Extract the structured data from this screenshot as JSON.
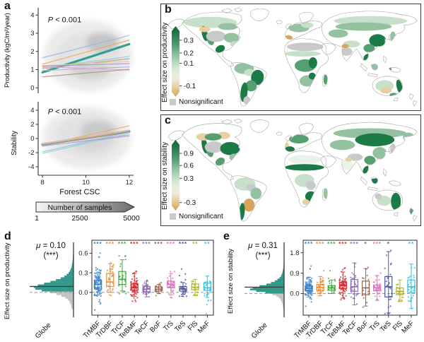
{
  "panels": {
    "a": {
      "label": "a",
      "p_value": "P < 0.001",
      "ylabel_top": "Productivity (kgC/m²/year)",
      "ylabel_bottom": "Stability",
      "xlabel": "Forest CSC",
      "samples_label": "Number of samples",
      "samples_ticks": [
        "1",
        "2500",
        "5000"
      ]
    },
    "b": {
      "label": "b",
      "legend_title": "Effect size on productivity",
      "nonsignificant": "Nonsignificant"
    },
    "c": {
      "label": "c",
      "legend_title": "Effect size on stability",
      "nonsignificant": "Nonsignificant"
    },
    "d": {
      "label": "d",
      "mu_sym": "μ",
      "mu_rest": " = 0.10",
      "sig": "(***)",
      "ylabel": "Effect size on productivity",
      "globe": "Globe"
    },
    "e": {
      "label": "e",
      "mu_sym": "μ",
      "mu_rest": " = 0.31",
      "sig": "(***)",
      "ylabel": "Effect size on stability",
      "globe": "Globe"
    }
  },
  "map_palette": {
    "outline": "#b4b4b4",
    "ns": "#c9c9c9",
    "g0": "#eaf2e8",
    "g1": "#c8dfc9",
    "g2": "#94c2a1",
    "g3": "#569f70",
    "g4": "#1b7a45",
    "tan1": "#e7cfa0",
    "tan2": "#d7a65b"
  },
  "chart_data": [
    {
      "id": "a_top",
      "type": "line",
      "title": "",
      "ylabel": "Productivity (kgC/m²/year)",
      "xlabel": "",
      "annotation": "P < 0.001",
      "xlim": [
        7.8,
        12.2
      ],
      "ylim": [
        -0.3,
        4.4
      ],
      "yticks": [
        0,
        1,
        2,
        3,
        4
      ],
      "xticks": [
        8,
        10,
        12
      ],
      "show_xticks": false,
      "series": [
        {
          "name": "Globe",
          "color": "#289c8e",
          "lw": 3.2,
          "x": [
            8,
            12
          ],
          "y": [
            0.85,
            2.4
          ]
        },
        {
          "name": "TrMBF",
          "color": "#92b9e0",
          "lw": 1.1,
          "x": [
            8,
            12
          ],
          "y": [
            1.65,
            2.88
          ]
        },
        {
          "name": "TrDBF",
          "color": "#edaa55",
          "lw": 1.1,
          "x": [
            8,
            12
          ],
          "y": [
            1.3,
            2.62
          ]
        },
        {
          "name": "MeF",
          "color": "#82d3da",
          "lw": 1.1,
          "x": [
            8,
            12
          ],
          "y": [
            1.1,
            1.72
          ]
        },
        {
          "name": "TeBMF",
          "color": "#dd8a85",
          "lw": 1.1,
          "x": [
            8,
            12
          ],
          "y": [
            1.05,
            1.6
          ]
        },
        {
          "name": "FlS",
          "color": "#d3d490",
          "lw": 1.1,
          "x": [
            8,
            12
          ],
          "y": [
            1.22,
            1.45
          ]
        },
        {
          "name": "TeCF",
          "color": "#a795cd",
          "lw": 1.1,
          "x": [
            8,
            12
          ],
          "y": [
            1.2,
            1.33
          ]
        },
        {
          "name": "TeS",
          "color": "#b7aeda",
          "lw": 1.1,
          "x": [
            8,
            12
          ],
          "y": [
            0.95,
            1.15
          ]
        },
        {
          "name": "TrS",
          "color": "#dfa9cf",
          "lw": 1.1,
          "x": [
            8,
            12
          ],
          "y": [
            1.16,
            0.98
          ]
        },
        {
          "name": "BoF",
          "color": "#b68f80",
          "lw": 1.1,
          "x": [
            8,
            12
          ],
          "y": [
            0.6,
            1.02
          ]
        }
      ]
    },
    {
      "id": "a_bottom",
      "type": "line",
      "title": "",
      "ylabel": "Stability",
      "xlabel": "Forest CSC",
      "annotation": "P < 0.001",
      "xlim": [
        7.8,
        12.2
      ],
      "ylim": [
        -5.2,
        5.2
      ],
      "yticks": [
        -4,
        -2,
        0,
        2,
        4
      ],
      "xticks": [
        8,
        10,
        12
      ],
      "show_xticks": true,
      "series": [
        {
          "name": "Globe",
          "color": "#289c8e",
          "lw": 3.2,
          "x": [
            8,
            12
          ],
          "y": [
            -0.85,
            1.0
          ]
        },
        {
          "name": "TrDBF",
          "color": "#edaa55",
          "lw": 1.1,
          "x": [
            8,
            12
          ],
          "y": [
            -0.95,
            1.8
          ]
        },
        {
          "name": "TrMBF",
          "color": "#92b9e0",
          "lw": 1.1,
          "x": [
            8,
            12
          ],
          "y": [
            -1.9,
            0.9
          ]
        },
        {
          "name": "MeF",
          "color": "#82d3da",
          "lw": 1.1,
          "x": [
            8,
            12
          ],
          "y": [
            -2.1,
            0.7
          ]
        },
        {
          "name": "TrS",
          "color": "#dfa9cf",
          "lw": 1.1,
          "x": [
            8,
            12
          ],
          "y": [
            -0.7,
            1.2
          ]
        },
        {
          "name": "TeBMF",
          "color": "#dd8a85",
          "lw": 1.1,
          "x": [
            8,
            12
          ],
          "y": [
            -0.85,
            1.05
          ]
        },
        {
          "name": "FlS",
          "color": "#d3d490",
          "lw": 1.1,
          "x": [
            8,
            12
          ],
          "y": [
            -0.8,
            1.1
          ]
        },
        {
          "name": "TeCF",
          "color": "#a795cd",
          "lw": 1.1,
          "x": [
            8,
            12
          ],
          "y": [
            -1.05,
            0.35
          ]
        },
        {
          "name": "TeS",
          "color": "#b7aeda",
          "lw": 1.1,
          "x": [
            8,
            12
          ],
          "y": [
            -1.1,
            0.5
          ]
        },
        {
          "name": "BoF",
          "color": "#b68f80",
          "lw": 1.1,
          "x": [
            8,
            12
          ],
          "y": [
            -0.9,
            0.9
          ]
        }
      ]
    },
    {
      "id": "map_b",
      "type": "heatmap",
      "legend_title": "Effect size on productivity",
      "legend_ticks": [
        {
          "label": "0.3",
          "f": 0.15
        },
        {
          "label": "0.2",
          "f": 0.36
        },
        {
          "label": "0.1",
          "f": 0.53
        },
        {
          "label": "-0.1",
          "f": 0.9
        }
      ],
      "nonsignificant_label": "Nonsignificant",
      "gradient": [
        "#116136",
        "#27804e",
        "#4a9a6a",
        "#7fba92",
        "#b3d7b6",
        "#ddecd8",
        "#f0ecdc",
        "#e7cb94",
        "#d1a254"
      ],
      "nonsig_color": "#c9c9c9"
    },
    {
      "id": "map_c",
      "type": "heatmap",
      "legend_title": "Effect size on stability",
      "legend_ticks": [
        {
          "label": "0.9",
          "f": 0.14
        },
        {
          "label": "0.6",
          "f": 0.34
        },
        {
          "label": "0.3",
          "f": 0.55
        },
        {
          "label": "-0.3",
          "f": 0.95
        }
      ],
      "nonsignificant_label": "Nonsignificant",
      "gradient": [
        "#116136",
        "#27804e",
        "#4a9a6a",
        "#7fba92",
        "#b3d7b6",
        "#ddecd8",
        "#f0ecdc",
        "#e7cb94",
        "#d1a254"
      ],
      "nonsig_color": "#c9c9c9"
    },
    {
      "id": "box_d",
      "type": "box",
      "ylabel": "Effect size on productivity",
      "globe_label": "Globe",
      "mu": 0.1,
      "mu_label": "μ = 0.10",
      "sig_label": "(***)",
      "ylim": [
        -0.35,
        0.8
      ],
      "yticks": [
        0,
        0.3,
        0.6
      ],
      "categories": [
        "TrMBF",
        "TrDBF",
        "TrCF",
        "TeBMF",
        "TeCF",
        "BoF",
        "TrS",
        "TeS",
        "FlS",
        "MeF"
      ],
      "colors": [
        "#3d82c4",
        "#ee8a33",
        "#41a63f",
        "#d62a2e",
        "#8d6cb8",
        "#96604f",
        "#dd74bc",
        "#4a55a2",
        "#b5b323",
        "#35c4dc"
      ],
      "sig": [
        "***",
        "***",
        "***",
        "***",
        "***",
        "***",
        "***",
        "***",
        "**",
        "**"
      ],
      "boxes": [
        {
          "lo": -0.04,
          "q1": 0.05,
          "med": 0.12,
          "q3": 0.19,
          "hi": 0.31,
          "pts": 95,
          "pmin": -0.34,
          "pmax": 0.62
        },
        {
          "lo": 0.0,
          "q1": 0.09,
          "med": 0.16,
          "q3": 0.29,
          "hi": 0.44,
          "pts": 30,
          "pmin": -0.05,
          "pmax": 0.55
        },
        {
          "lo": 0.02,
          "q1": 0.12,
          "med": 0.2,
          "q3": 0.32,
          "hi": 0.5,
          "pts": 24,
          "pmin": -0.02,
          "pmax": 0.56
        },
        {
          "lo": -0.06,
          "q1": 0.03,
          "med": 0.07,
          "q3": 0.13,
          "hi": 0.29,
          "pts": 60,
          "pmin": -0.18,
          "pmax": 0.33
        },
        {
          "lo": -0.07,
          "q1": 0.01,
          "med": 0.05,
          "q3": 0.09,
          "hi": 0.17,
          "pts": 40,
          "pmin": -0.12,
          "pmax": 0.2
        },
        {
          "lo": -0.02,
          "q1": 0.02,
          "med": 0.05,
          "q3": 0.08,
          "hi": 0.12,
          "pts": 14,
          "pmin": -0.05,
          "pmax": 0.16
        },
        {
          "lo": -0.04,
          "q1": 0.07,
          "med": 0.12,
          "q3": 0.17,
          "hi": 0.29,
          "pts": 40,
          "pmin": -0.15,
          "pmax": 0.32
        },
        {
          "lo": -0.03,
          "q1": 0.02,
          "med": 0.05,
          "q3": 0.09,
          "hi": 0.15,
          "pts": 30,
          "pmin": -0.06,
          "pmax": 0.38
        },
        {
          "lo": -0.05,
          "q1": 0.04,
          "med": 0.08,
          "q3": 0.13,
          "hi": 0.2,
          "pts": 18,
          "pmin": -0.07,
          "pmax": 0.35
        },
        {
          "lo": -0.08,
          "q1": 0.03,
          "med": 0.07,
          "q3": 0.14,
          "hi": 0.25,
          "pts": 32,
          "pmin": -0.45,
          "pmax": 0.3
        }
      ],
      "hist": {
        "bin": 0.03,
        "bars": [
          [
            -0.27,
            0.04
          ],
          [
            -0.24,
            0.05
          ],
          [
            -0.21,
            0.06
          ],
          [
            -0.18,
            0.08
          ],
          [
            -0.15,
            0.1
          ],
          [
            -0.12,
            0.14
          ],
          [
            -0.09,
            0.2
          ],
          [
            -0.06,
            0.3
          ],
          [
            -0.03,
            0.42
          ],
          [
            0.0,
            0.58
          ],
          [
            0.03,
            0.8
          ],
          [
            0.06,
            0.96
          ],
          [
            0.09,
            1.0
          ],
          [
            0.12,
            0.9
          ],
          [
            0.15,
            0.74
          ],
          [
            0.18,
            0.58
          ],
          [
            0.21,
            0.44
          ],
          [
            0.24,
            0.32
          ],
          [
            0.27,
            0.23
          ],
          [
            0.3,
            0.17
          ],
          [
            0.33,
            0.12
          ],
          [
            0.36,
            0.09
          ],
          [
            0.39,
            0.07
          ],
          [
            0.42,
            0.05
          ],
          [
            0.45,
            0.04
          ],
          [
            0.48,
            0.03
          ],
          [
            0.51,
            0.025
          ],
          [
            0.54,
            0.02
          ],
          [
            0.57,
            0.015
          ],
          [
            0.6,
            0.012
          ],
          [
            0.63,
            0.01
          ]
        ]
      }
    },
    {
      "id": "box_e",
      "type": "box",
      "ylabel": "Effect size on stability",
      "globe_label": "Globe",
      "mu": 0.31,
      "mu_label": "μ = 0.31",
      "sig_label": "(***)",
      "ylim": [
        -0.95,
        2.35
      ],
      "yticks": [
        0,
        0.9,
        1.8
      ],
      "categories": [
        "TrMBF",
        "TrDBF",
        "TrCF",
        "TeBMF",
        "TeCF",
        "BoF",
        "TrS",
        "TeS",
        "FlS",
        "MeF"
      ],
      "colors": [
        "#3d82c4",
        "#ee8a33",
        "#41a63f",
        "#d62a2e",
        "#8d6cb8",
        "#96604f",
        "#dd74bc",
        "#4a55a2",
        "#b5b323",
        "#35c4dc"
      ],
      "sig": [
        "***",
        "***",
        "***",
        "***",
        "***",
        "*",
        "***",
        "*",
        "",
        "**"
      ],
      "boxes": [
        {
          "lo": -0.15,
          "q1": 0.12,
          "med": 0.22,
          "q3": 0.35,
          "hi": 0.72,
          "pts": 95,
          "pmin": -0.7,
          "pmax": 1.25
        },
        {
          "lo": -0.1,
          "q1": 0.15,
          "med": 0.27,
          "q3": 0.4,
          "hi": 0.75,
          "pts": 32,
          "pmin": -0.3,
          "pmax": 1.35
        },
        {
          "lo": 0.0,
          "q1": 0.15,
          "med": 0.25,
          "q3": 0.35,
          "hi": 0.6,
          "pts": 22,
          "pmin": -0.1,
          "pmax": 1.3
        },
        {
          "lo": -0.2,
          "q1": 0.22,
          "med": 0.35,
          "q3": 0.5,
          "hi": 0.95,
          "pts": 60,
          "pmin": -0.4,
          "pmax": 1.15
        },
        {
          "lo": -0.5,
          "q1": 0.1,
          "med": 0.3,
          "q3": 0.62,
          "hi": 1.35,
          "pts": 40,
          "pmin": -0.6,
          "pmax": 1.4
        },
        {
          "lo": -0.55,
          "q1": -0.05,
          "med": 0.25,
          "q3": 0.55,
          "hi": 1.1,
          "pts": 14,
          "pmin": -0.6,
          "pmax": 1.15
        },
        {
          "lo": -0.3,
          "q1": 0.12,
          "med": 0.25,
          "q3": 0.38,
          "hi": 0.8,
          "pts": 40,
          "pmin": -0.45,
          "pmax": 0.9
        },
        {
          "lo": -0.85,
          "q1": -0.15,
          "med": 0.3,
          "q3": 0.75,
          "hi": 1.85,
          "pts": 26,
          "pmin": -0.9,
          "pmax": 1.9
        },
        {
          "lo": -0.35,
          "q1": -0.05,
          "med": 0.1,
          "q3": 0.25,
          "hi": 0.6,
          "pts": 18,
          "pmin": -0.4,
          "pmax": 0.65
        },
        {
          "lo": -0.65,
          "q1": 0.05,
          "med": 0.3,
          "q3": 0.6,
          "hi": 1.3,
          "pts": 32,
          "pmin": -0.7,
          "pmax": 1.55
        }
      ],
      "hist": {
        "bin": 0.08,
        "bars": [
          [
            -0.76,
            0.02
          ],
          [
            -0.68,
            0.025
          ],
          [
            -0.6,
            0.03
          ],
          [
            -0.52,
            0.04
          ],
          [
            -0.44,
            0.055
          ],
          [
            -0.36,
            0.075
          ],
          [
            -0.28,
            0.1
          ],
          [
            -0.2,
            0.15
          ],
          [
            -0.12,
            0.22
          ],
          [
            -0.04,
            0.34
          ],
          [
            0.04,
            0.55
          ],
          [
            0.12,
            0.82
          ],
          [
            0.2,
            1.0
          ],
          [
            0.28,
            0.92
          ],
          [
            0.36,
            0.72
          ],
          [
            0.44,
            0.52
          ],
          [
            0.52,
            0.38
          ],
          [
            0.6,
            0.27
          ],
          [
            0.68,
            0.19
          ],
          [
            0.76,
            0.13
          ],
          [
            0.84,
            0.09
          ],
          [
            0.92,
            0.065
          ],
          [
            1.0,
            0.05
          ],
          [
            1.08,
            0.038
          ],
          [
            1.16,
            0.028
          ],
          [
            1.24,
            0.02
          ],
          [
            1.32,
            0.015
          ],
          [
            1.4,
            0.012
          ],
          [
            1.48,
            0.01
          ]
        ]
      }
    }
  ]
}
